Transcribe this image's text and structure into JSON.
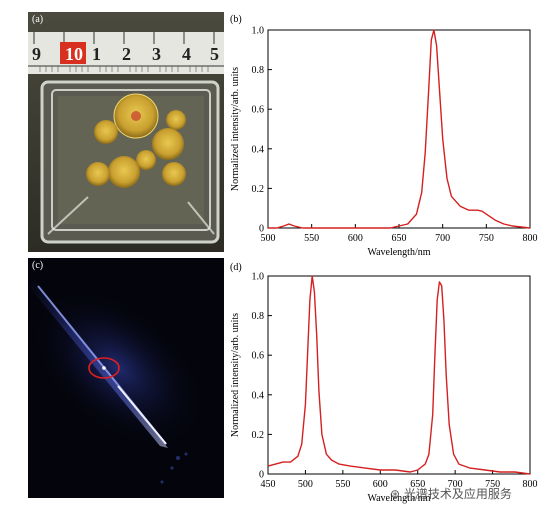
{
  "panels": {
    "a": {
      "label": "(a)",
      "ruler_numbers": [
        "9",
        "10",
        "1",
        "2",
        "3",
        "4",
        "5"
      ]
    },
    "b": {
      "label": "(b)"
    },
    "c": {
      "label": "(c)"
    },
    "d": {
      "label": "(d)"
    }
  },
  "watermark": "光谱技术及应用服务",
  "chart_data": [
    {
      "type": "line",
      "panel": "(b)",
      "xlabel": "Wavelength/nm",
      "ylabel": "Normalized intensity/arb. units",
      "xlim": [
        500,
        800
      ],
      "ylim": [
        0,
        1.0
      ],
      "xticks": [
        "500",
        "550",
        "600",
        "650",
        "700",
        "750",
        "800"
      ],
      "yticks": [
        "0",
        "0.2",
        "0.4",
        "0.6",
        "0.8",
        "1.0"
      ],
      "grid": false,
      "series": [
        {
          "color": "#d42020",
          "x": [
            500,
            510,
            518,
            524,
            530,
            540,
            560,
            600,
            640,
            660,
            670,
            676,
            680,
            684,
            687,
            690,
            693,
            696,
            700,
            705,
            710,
            720,
            730,
            740,
            745,
            750,
            760,
            770,
            780,
            790,
            800
          ],
          "y": [
            0.0,
            0.0,
            0.01,
            0.02,
            0.01,
            0.0,
            0.0,
            0.0,
            0.0,
            0.02,
            0.07,
            0.18,
            0.38,
            0.7,
            0.95,
            1.0,
            0.92,
            0.72,
            0.45,
            0.25,
            0.16,
            0.11,
            0.09,
            0.09,
            0.085,
            0.07,
            0.04,
            0.02,
            0.01,
            0.005,
            0.0
          ]
        }
      ]
    },
    {
      "type": "line",
      "panel": "(d)",
      "xlabel": "Wavelength/nm",
      "ylabel": "Normalized intensity/arb. units",
      "xlim": [
        450,
        800
      ],
      "ylim": [
        0,
        1.0
      ],
      "xticks": [
        "450",
        "500",
        "550",
        "600",
        "650",
        "700",
        "750",
        "800"
      ],
      "yticks": [
        "0",
        "0.2",
        "0.4",
        "0.6",
        "0.8",
        "1.0"
      ],
      "grid": false,
      "series": [
        {
          "color": "#d42020",
          "x": [
            450,
            460,
            470,
            480,
            490,
            495,
            500,
            503,
            506,
            509,
            512,
            515,
            518,
            522,
            528,
            535,
            545,
            560,
            580,
            600,
            620,
            640,
            650,
            660,
            665,
            670,
            673,
            676,
            679,
            682,
            685,
            688,
            692,
            698,
            705,
            720,
            740,
            760,
            780,
            800
          ],
          "y": [
            0.04,
            0.05,
            0.06,
            0.06,
            0.09,
            0.15,
            0.35,
            0.62,
            0.88,
            1.0,
            0.92,
            0.7,
            0.42,
            0.2,
            0.1,
            0.07,
            0.05,
            0.04,
            0.03,
            0.02,
            0.02,
            0.01,
            0.02,
            0.05,
            0.1,
            0.3,
            0.6,
            0.88,
            0.97,
            0.95,
            0.78,
            0.5,
            0.25,
            0.1,
            0.05,
            0.03,
            0.02,
            0.01,
            0.01,
            0.0
          ]
        }
      ]
    }
  ]
}
